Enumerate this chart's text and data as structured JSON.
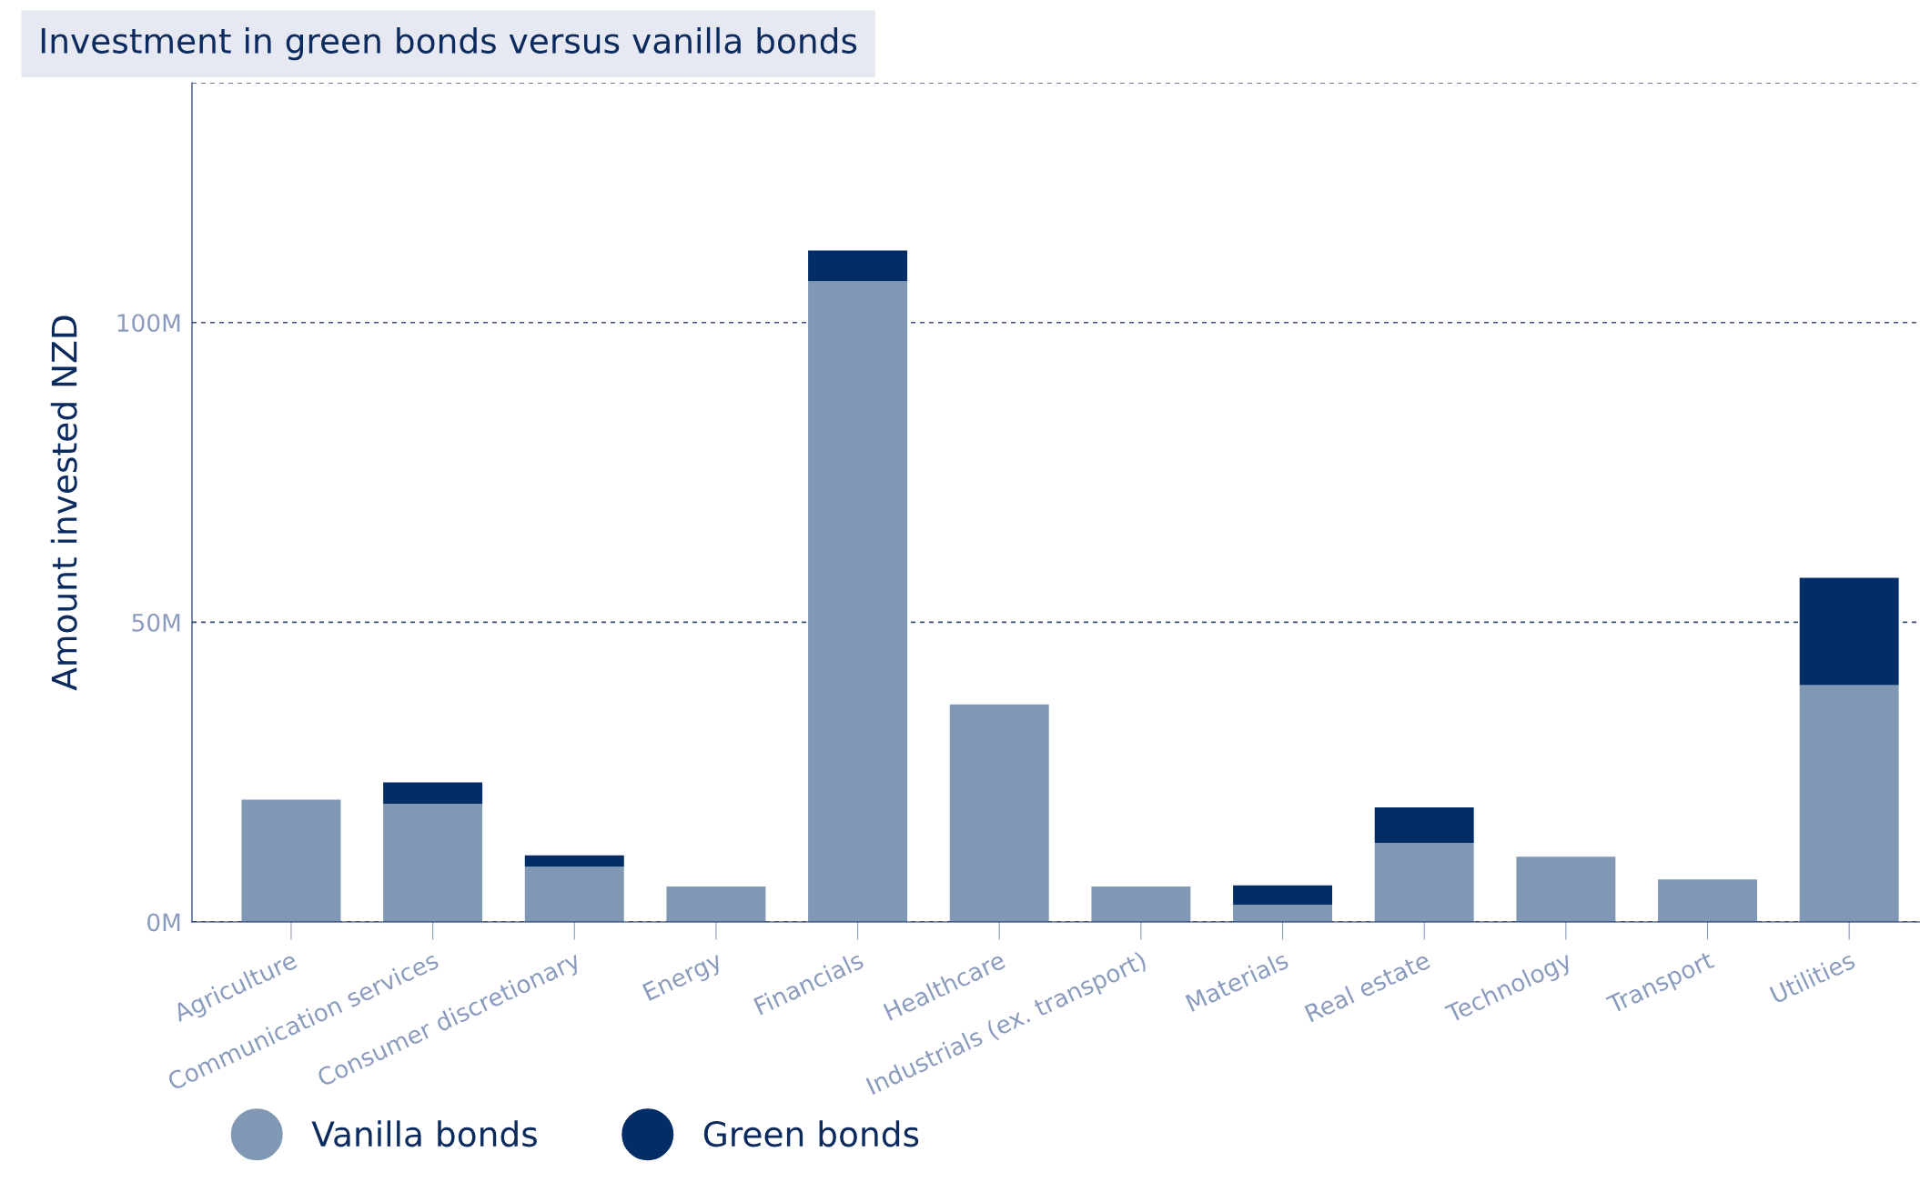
{
  "chart_data": {
    "type": "bar",
    "title": "Investment in green bonds versus vanilla bonds",
    "ylabel": "Amount invested NZD",
    "categories": [
      "Agriculture",
      "Communication services",
      "Consumer discretionary",
      "Energy",
      "Financials",
      "Healthcare",
      "Industrials (ex. transport)",
      "Materials",
      "Real estate",
      "Technology",
      "Transport",
      "Utilities"
    ],
    "series": [
      {
        "name": "Vanilla bonds",
        "color": "#8198b5",
        "values": [
          20.4,
          19.7,
          9.2,
          5.9,
          106.9,
          36.3,
          5.9,
          2.9,
          13.2,
          10.9,
          7.1,
          39.5
        ]
      },
      {
        "name": "Green bonds",
        "color": "#022d66",
        "values": [
          null,
          3.6,
          1.9,
          null,
          5.1,
          null,
          null,
          3.2,
          5.9,
          null,
          null,
          17.9
        ]
      }
    ],
    "stacked": true,
    "ylim": [
      0,
      140
    ],
    "yticks": [
      {
        "value": 0,
        "label": "0M"
      },
      {
        "value": 50,
        "label": "50M"
      },
      {
        "value": 100,
        "label": "100M"
      },
      {
        "value": 140,
        "label": null
      }
    ],
    "grid": "y",
    "legend": "bottom left"
  }
}
